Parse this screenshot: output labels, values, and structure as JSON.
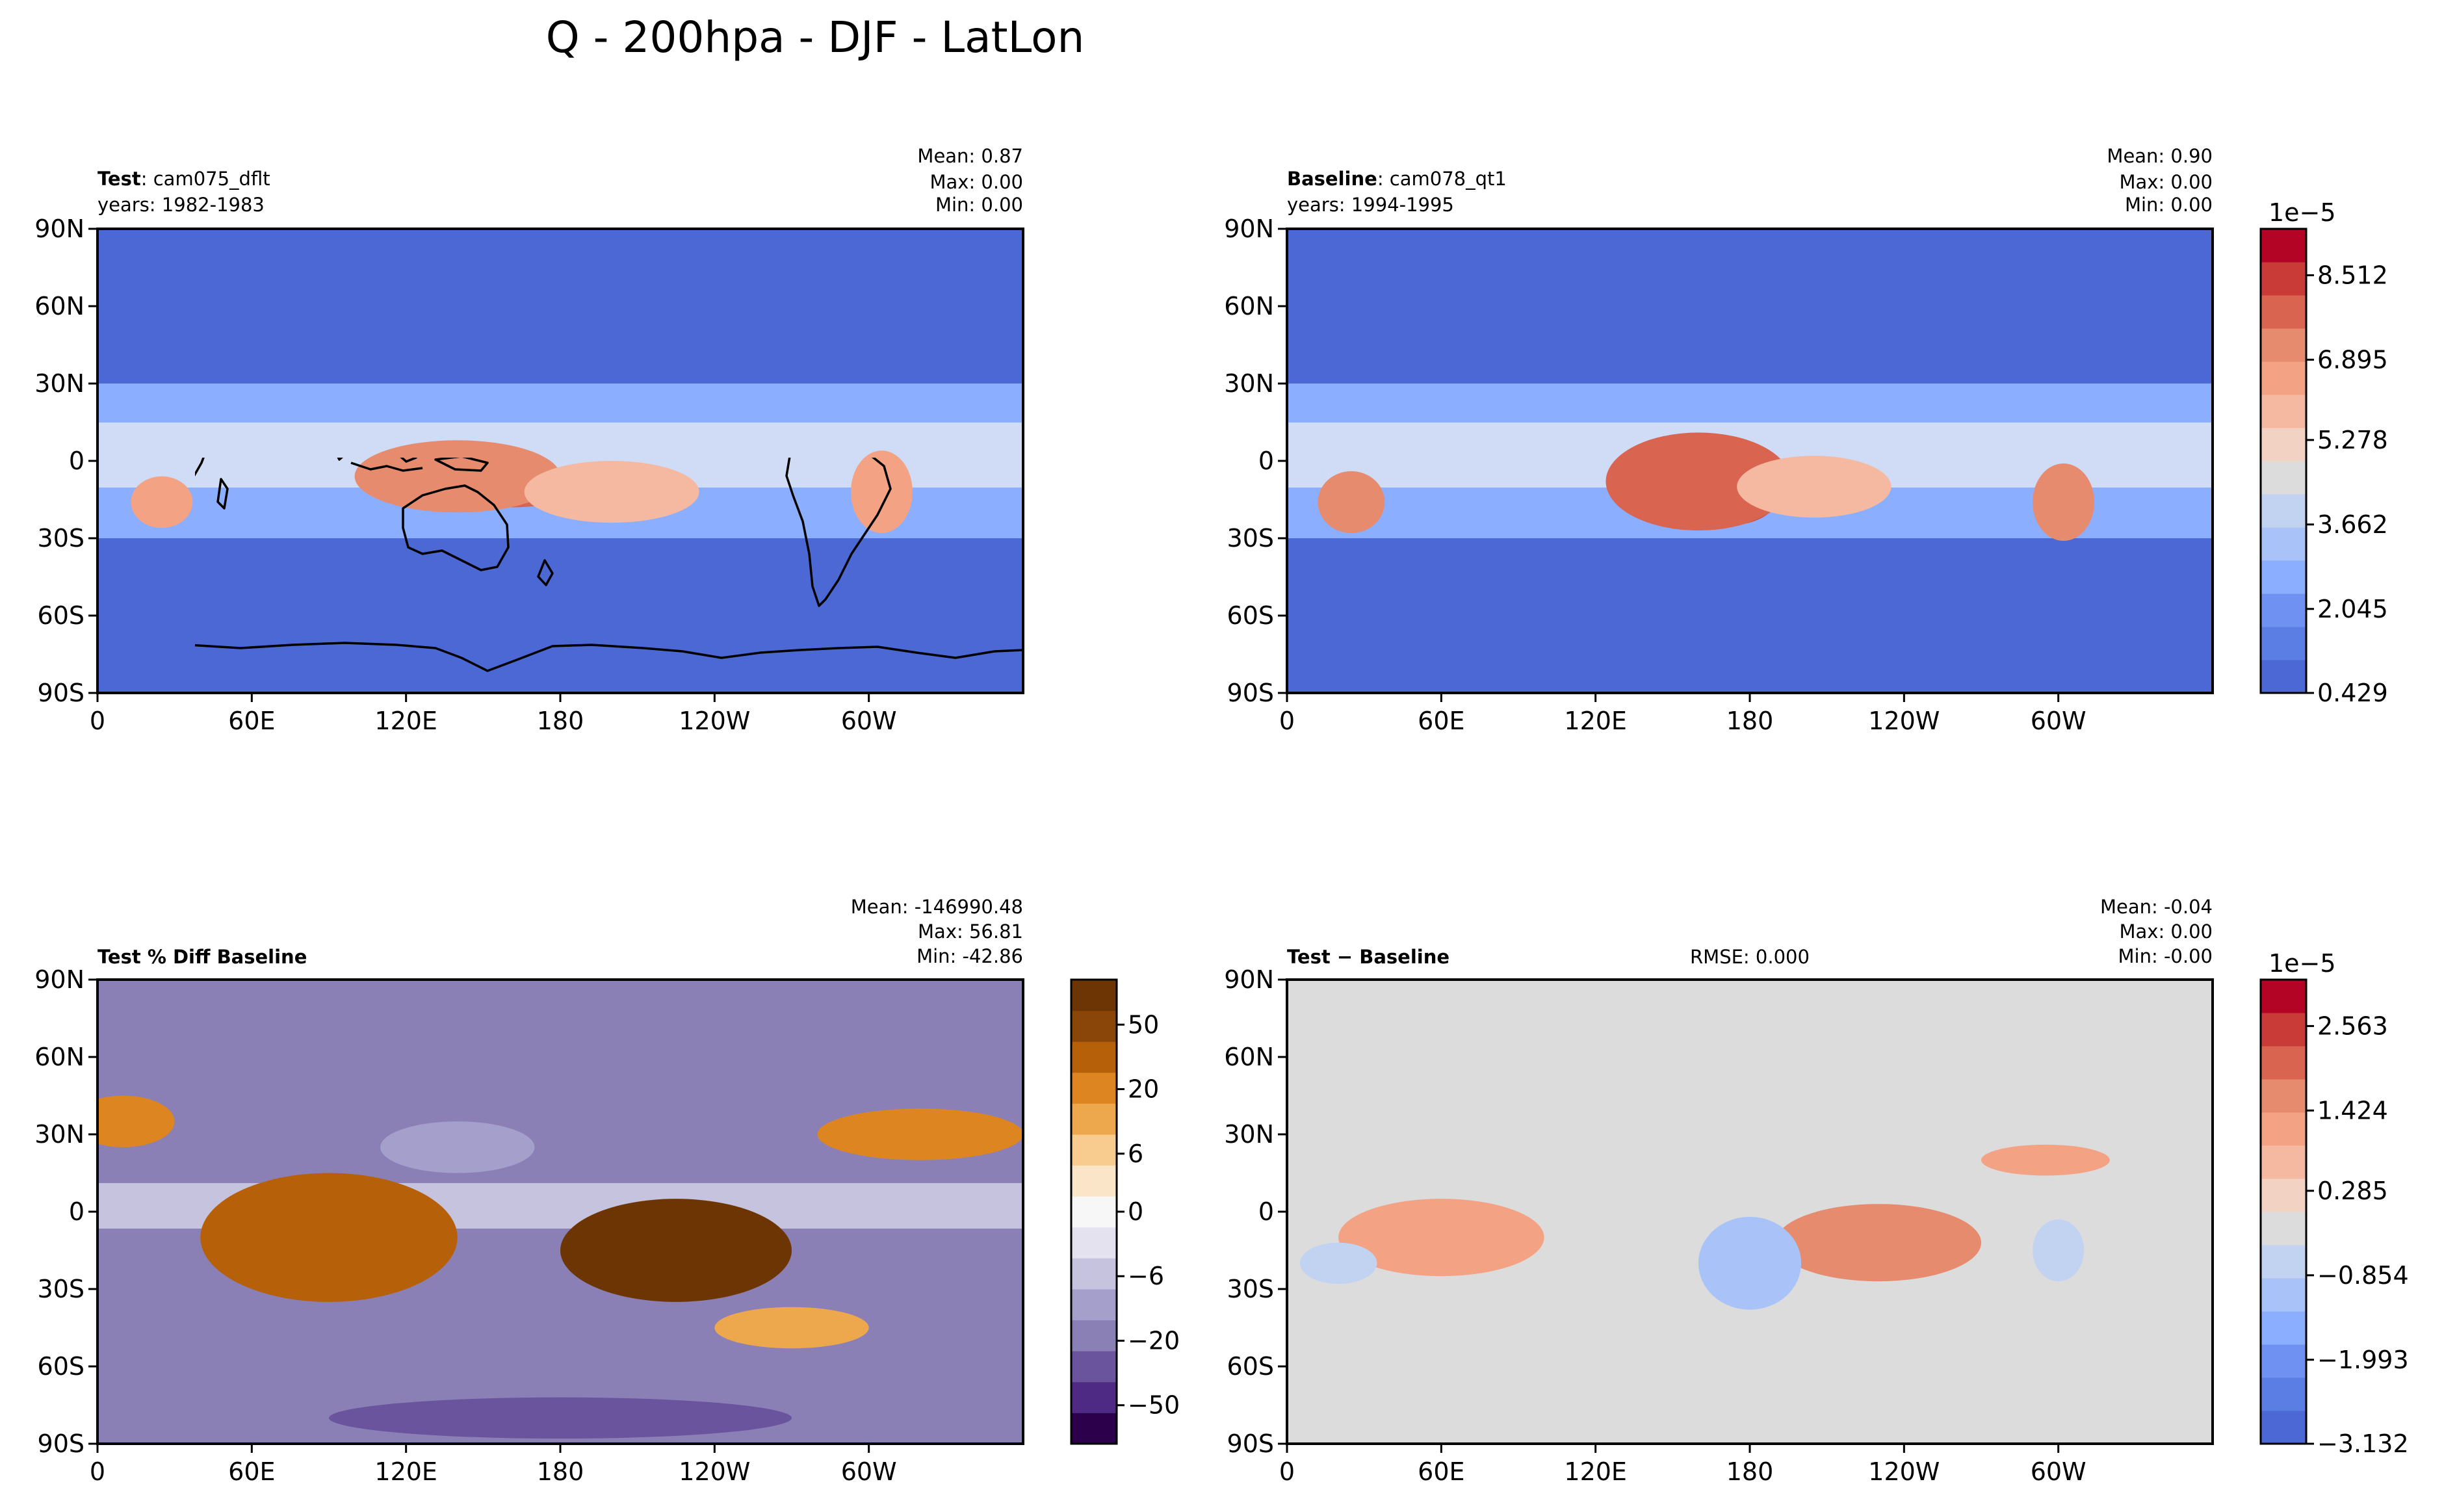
{
  "figure": {
    "title": "Q - 200hpa - DJF - LatLon"
  },
  "axes": {
    "lat_ticks": [
      "90N",
      "60N",
      "30N",
      "0",
      "30S",
      "60S",
      "90S"
    ],
    "lon_ticks": [
      "0",
      "60E",
      "120E",
      "180",
      "120W",
      "60W"
    ]
  },
  "chart_data": [
    {
      "type": "heatmap",
      "panel": "test",
      "label_bold": "Test",
      "label_rest": ": cam075_dflt",
      "years": "years: 1982-1983",
      "stats": [
        "Mean:  0.87",
        "Max:  0.00",
        "Min:  0.00"
      ],
      "xlim": [
        0,
        360
      ],
      "ylim": [
        -90,
        90
      ],
      "xlabel": "",
      "ylabel": "",
      "blobs": [
        {
          "lon": 162,
          "lat": -10,
          "level": 11,
          "rx": 24,
          "ry": 8
        },
        {
          "lon": 140,
          "lat": -6,
          "level": 10,
          "rx": 40,
          "ry": 14
        },
        {
          "lon": 25,
          "lat": -16,
          "level": 9,
          "rx": 12,
          "ry": 10
        },
        {
          "lon": 305,
          "lat": -12,
          "level": 9,
          "rx": 12,
          "ry": 16
        },
        {
          "lon": 200,
          "lat": -12,
          "level": 8,
          "rx": 34,
          "ry": 12
        }
      ]
    },
    {
      "type": "heatmap",
      "panel": "baseline",
      "label_bold": "Baseline",
      "label_rest": ": cam078_qt1",
      "years": "years: 1994-1995",
      "stats": [
        "Mean:  0.90",
        "Max:  0.00",
        "Min:  0.00"
      ],
      "xlim": [
        0,
        360
      ],
      "ylim": [
        -90,
        90
      ],
      "xlabel": "",
      "ylabel": "",
      "colorbar": {
        "exponent": "1e−5",
        "tick_labels": [
          "8.512",
          "6.895",
          "5.278",
          "3.662",
          "2.045",
          "0.429"
        ]
      },
      "blobs": [
        {
          "lon": 178,
          "lat": -15,
          "level": 13,
          "rx": 10,
          "ry": 8
        },
        {
          "lon": 172,
          "lat": -12,
          "level": 12,
          "rx": 20,
          "ry": 13
        },
        {
          "lon": 160,
          "lat": -8,
          "level": 11,
          "rx": 36,
          "ry": 19
        },
        {
          "lon": 25,
          "lat": -16,
          "level": 10,
          "rx": 13,
          "ry": 12
        },
        {
          "lon": 302,
          "lat": -16,
          "level": 10,
          "rx": 12,
          "ry": 15
        },
        {
          "lon": 205,
          "lat": -10,
          "level": 8,
          "rx": 30,
          "ry": 12
        }
      ]
    },
    {
      "type": "heatmap",
      "panel": "pctdiff",
      "label_bold": "Test % Diff Baseline",
      "label_rest": "",
      "stats": [
        "Mean: -146990.48",
        "Max: 56.81",
        "Min: -42.86"
      ],
      "xlim": [
        0,
        360
      ],
      "ylim": [
        -90,
        90
      ],
      "xlabel": "",
      "ylabel": "",
      "colorbar": {
        "tick_labels": [
          "50",
          "20",
          "6",
          "0",
          "−6",
          "−20",
          "−50"
        ]
      },
      "blobs": [
        {
          "lon": 225,
          "lat": -15,
          "level": 14,
          "rx": 45,
          "ry": 20
        },
        {
          "lon": 90,
          "lat": -10,
          "level": 12,
          "rx": 50,
          "ry": 25
        },
        {
          "lon": 320,
          "lat": 30,
          "level": 11,
          "rx": 40,
          "ry": 10
        },
        {
          "lon": 10,
          "lat": 35,
          "level": 11,
          "rx": 20,
          "ry": 10
        },
        {
          "lon": 270,
          "lat": -45,
          "level": 10,
          "rx": 30,
          "ry": 8
        },
        {
          "lon": 140,
          "lat": 25,
          "level": 4,
          "rx": 30,
          "ry": 10
        },
        {
          "lon": 150,
          "lat": -25,
          "level": 3,
          "rx": 15,
          "ry": 10
        },
        {
          "lon": 180,
          "lat": -80,
          "level": 2,
          "rx": 90,
          "ry": 8
        }
      ]
    },
    {
      "type": "heatmap",
      "panel": "diff",
      "label_bold": "Test",
      "label_rest": " − Baseline",
      "rmse": "RMSE: 0.000",
      "stats": [
        "Mean: -0.04",
        "Max:  0.00",
        "Min: -0.00"
      ],
      "xlim": [
        0,
        360
      ],
      "ylim": [
        -90,
        90
      ],
      "xlabel": "",
      "ylabel": "",
      "colorbar": {
        "exponent": "1e−5",
        "tick_labels": [
          "2.563",
          "1.424",
          "0.285",
          "−0.854",
          "−1.993",
          "−3.132"
        ]
      },
      "blobs": [
        {
          "lon": 230,
          "lat": -12,
          "level": 10,
          "rx": 40,
          "ry": 15
        },
        {
          "lon": 60,
          "lat": -10,
          "level": 9,
          "rx": 40,
          "ry": 15
        },
        {
          "lon": 295,
          "lat": 20,
          "level": 9,
          "rx": 25,
          "ry": 6
        },
        {
          "lon": 180,
          "lat": -20,
          "level": 4,
          "rx": 20,
          "ry": 18
        },
        {
          "lon": 20,
          "lat": -20,
          "level": 5,
          "rx": 15,
          "ry": 8
        },
        {
          "lon": 300,
          "lat": -15,
          "level": 5,
          "rx": 10,
          "ry": 12
        },
        {
          "lon": 120,
          "lat": 20,
          "level": 6,
          "rx": 30,
          "ry": 8
        },
        {
          "lon": 180,
          "lat": -55,
          "level": 6,
          "rx": 90,
          "ry": 5
        }
      ]
    }
  ]
}
